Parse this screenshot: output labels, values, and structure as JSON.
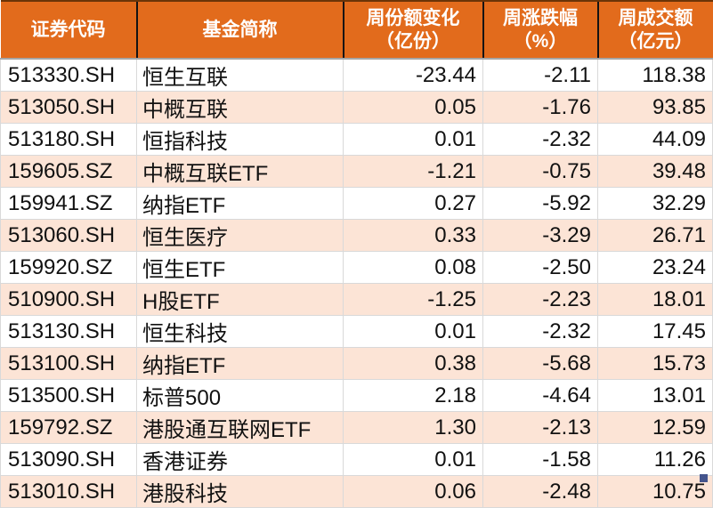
{
  "table": {
    "columns": [
      {
        "key": "code",
        "label": "证券代码",
        "unit": ""
      },
      {
        "key": "name",
        "label": "基金简称",
        "unit": ""
      },
      {
        "key": "share-change",
        "label": "周份额变化",
        "unit": "（亿份）"
      },
      {
        "key": "pct-change",
        "label": "周涨跌幅",
        "unit": "（%）"
      },
      {
        "key": "turnover",
        "label": "周成交额",
        "unit": "（亿元）"
      }
    ],
    "rows": [
      [
        "513330.SH",
        "恒生互联",
        "-23.44",
        "-2.11",
        "118.38"
      ],
      [
        "513050.SH",
        "中概互联",
        "0.05",
        "-1.76",
        "93.85"
      ],
      [
        "513180.SH",
        "恒指科技",
        "0.01",
        "-2.32",
        "44.09"
      ],
      [
        "159605.SZ",
        "中概互联ETF",
        "-1.21",
        "-0.75",
        "39.48"
      ],
      [
        "159941.SZ",
        "纳指ETF",
        "0.27",
        "-5.92",
        "32.29"
      ],
      [
        "513060.SH",
        "恒生医疗",
        "0.33",
        "-3.29",
        "26.71"
      ],
      [
        "159920.SZ",
        "恒生ETF",
        "0.08",
        "-2.50",
        "23.24"
      ],
      [
        "510900.SH",
        "H股ETF",
        "-1.25",
        "-2.23",
        "18.01"
      ],
      [
        "513130.SH",
        "恒生科技",
        "0.01",
        "-2.32",
        "17.45"
      ],
      [
        "513100.SH",
        "纳指ETF",
        "0.38",
        "-5.68",
        "15.73"
      ],
      [
        "513500.SH",
        "标普500",
        "2.18",
        "-4.64",
        "13.01"
      ],
      [
        "159792.SZ",
        "港股通互联网ETF",
        "1.30",
        "-2.13",
        "12.59"
      ],
      [
        "513090.SH",
        "香港证券",
        "0.01",
        "-1.58",
        "11.26"
      ],
      [
        "513010.SH",
        "港股科技",
        "0.06",
        "-2.48",
        "10.75"
      ]
    ]
  },
  "colors": {
    "header_bg": "#E26B1C",
    "header_text": "#FFFFFF",
    "row_bg": "#FFFFFF",
    "row_alt_bg": "#FCE4D6",
    "header_separator": "#141414",
    "body_border": "#D9D9D9",
    "selection_handle": "#44548C"
  }
}
